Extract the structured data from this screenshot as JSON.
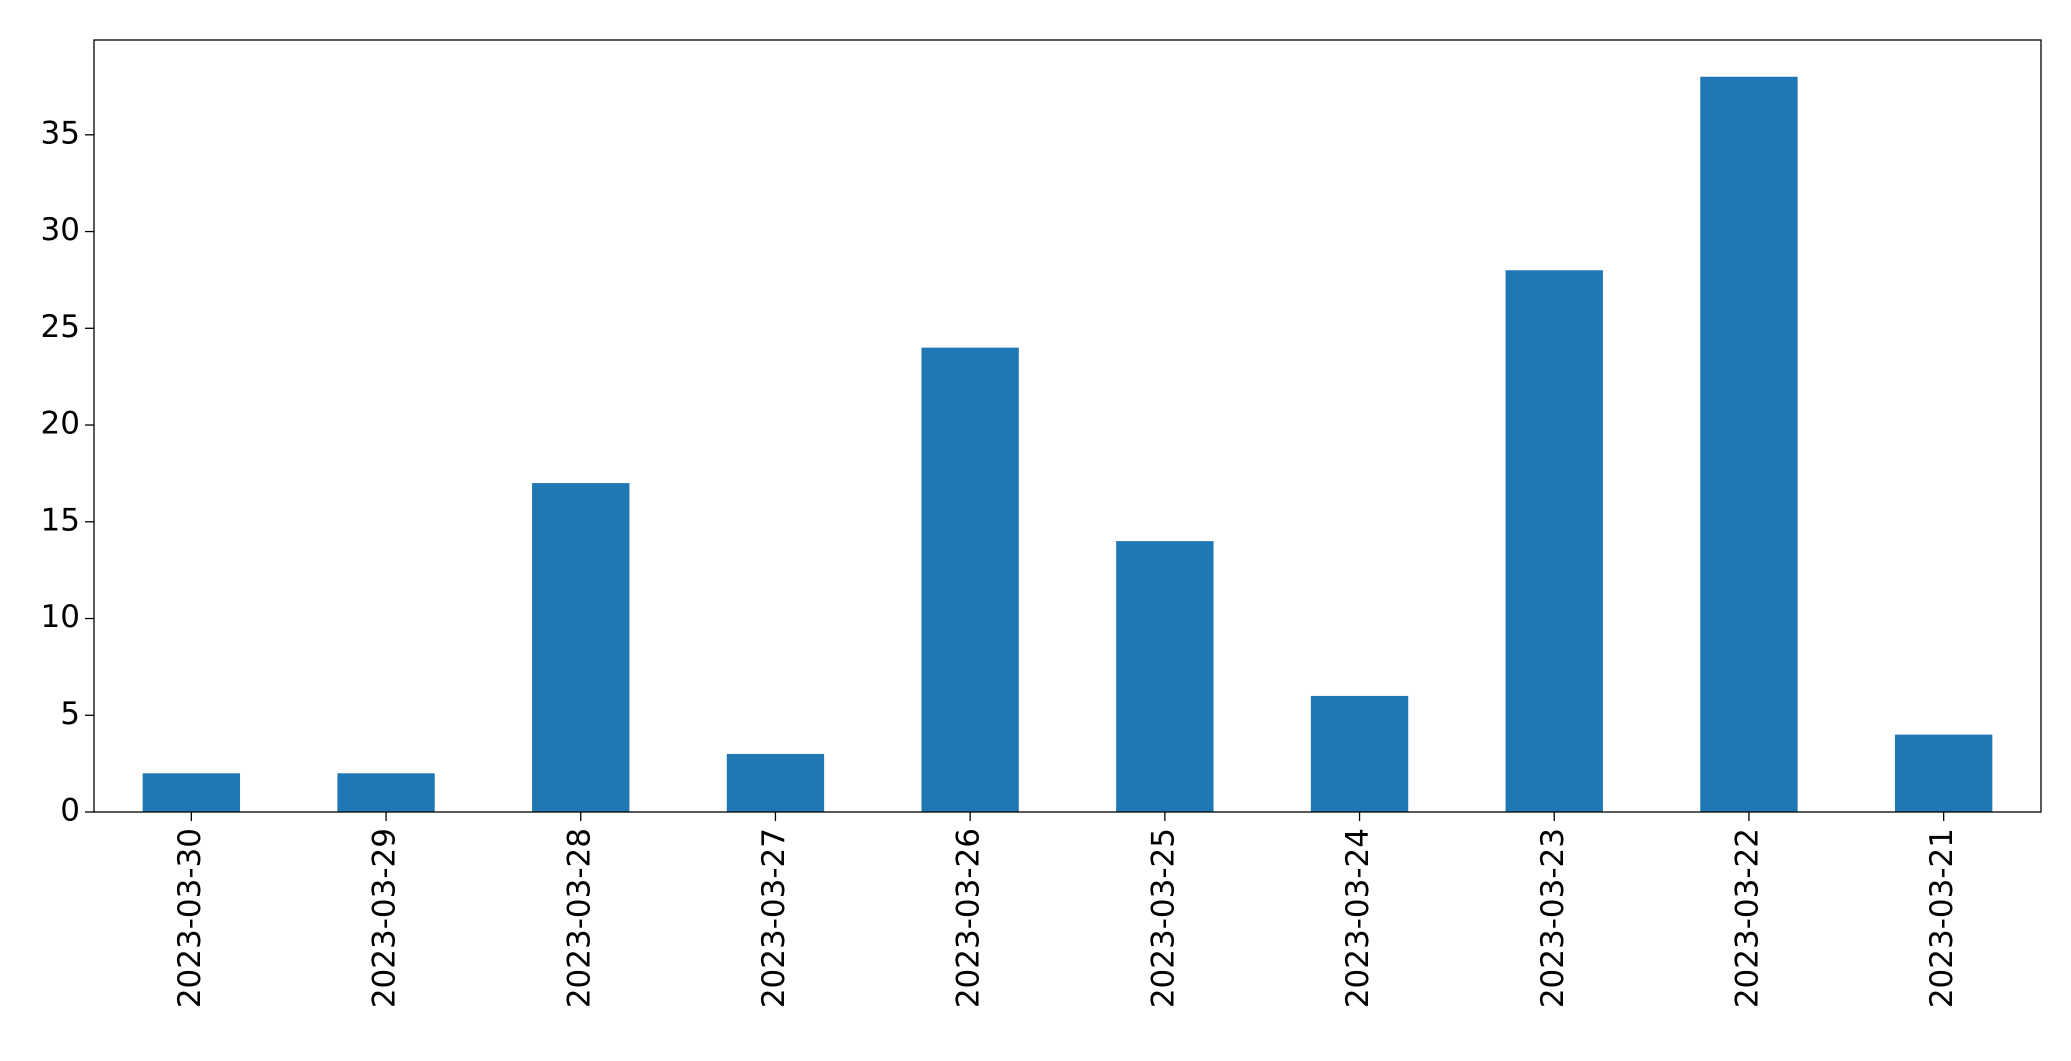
{
  "chart_data": {
    "type": "bar",
    "categories": [
      "2023-03-30",
      "2023-03-29",
      "2023-03-28",
      "2023-03-27",
      "2023-03-26",
      "2023-03-25",
      "2023-03-24",
      "2023-03-23",
      "2023-03-22",
      "2023-03-21"
    ],
    "values": [
      2,
      2,
      17,
      3,
      24,
      14,
      6,
      28,
      38,
      4
    ],
    "color": "#1f77b4",
    "ylim": [
      0,
      39.9
    ],
    "yticks": [
      0,
      5,
      10,
      15,
      20,
      25,
      30,
      35
    ],
    "grid": false
  }
}
